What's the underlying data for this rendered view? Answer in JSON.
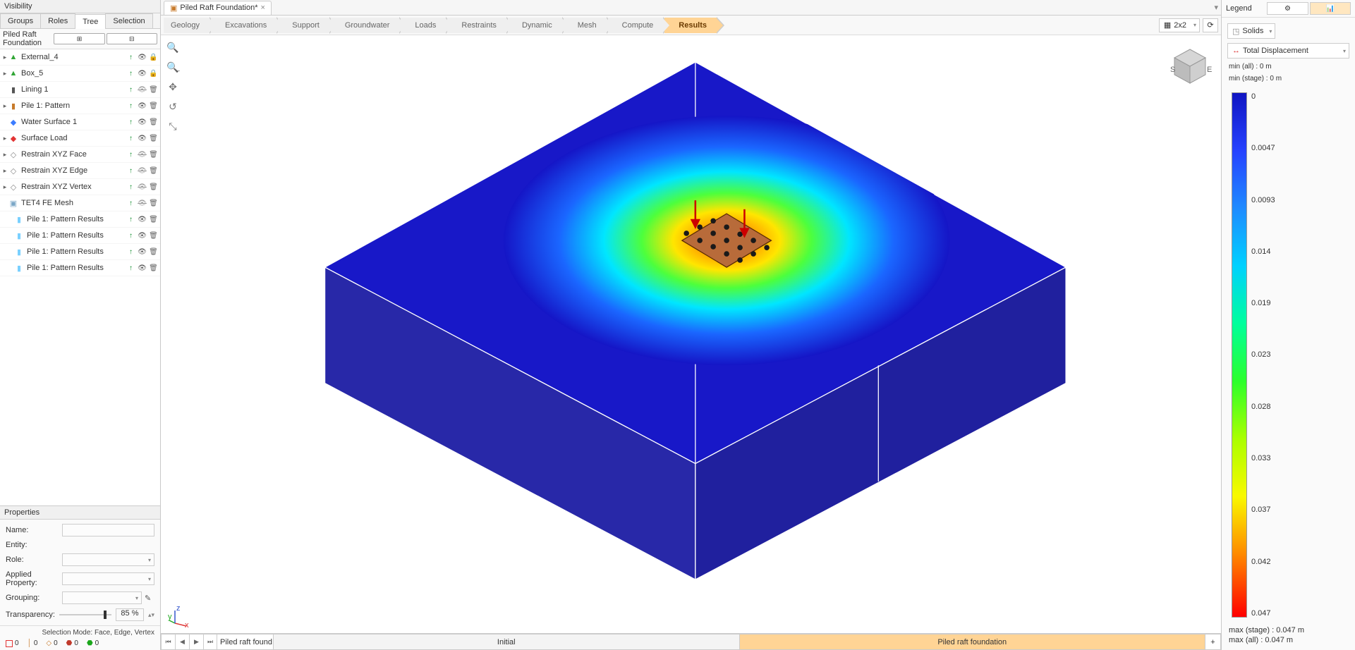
{
  "visibility": {
    "title": "Visibility",
    "tabs": [
      "Groups",
      "Roles",
      "Tree",
      "Selection"
    ],
    "active_tab": 2,
    "tree_title": "Piled Raft Foundation",
    "items": [
      {
        "expand": true,
        "icon_color": "#31a636",
        "icon": "▲",
        "label": "External_4",
        "arrow": true,
        "visible": true,
        "lock": true
      },
      {
        "expand": true,
        "icon_color": "#31a636",
        "icon": "▲",
        "label": "Box_5",
        "arrow": true,
        "visible": true,
        "lock": true
      },
      {
        "expand": false,
        "icon_color": "#555",
        "icon": "▮",
        "label": "Lining 1",
        "arrow": true,
        "visible": false,
        "lock": false
      },
      {
        "expand": true,
        "icon_color": "#c77a2b",
        "icon": "▮",
        "label": "Pile 1: Pattern",
        "arrow": true,
        "visible": true,
        "lock": false
      },
      {
        "expand": false,
        "icon_color": "#3b7cff",
        "icon": "◆",
        "label": "Water Surface 1",
        "arrow": true,
        "visible": true,
        "lock": false
      },
      {
        "expand": true,
        "icon_color": "#e23333",
        "icon": "◆",
        "label": "Surface Load",
        "arrow": true,
        "visible": true,
        "lock": false
      },
      {
        "expand": true,
        "icon_color": "#888",
        "icon": "◇",
        "label": "Restrain XYZ Face",
        "arrow": true,
        "visible": false,
        "lock": false
      },
      {
        "expand": true,
        "icon_color": "#888",
        "icon": "◇",
        "label": "Restrain XYZ Edge",
        "arrow": true,
        "visible": false,
        "lock": false
      },
      {
        "expand": true,
        "icon_color": "#888",
        "icon": "◇",
        "label": "Restrain XYZ Vertex",
        "arrow": true,
        "visible": false,
        "lock": false
      },
      {
        "expand": false,
        "icon_color": "#7aa7c7",
        "icon": "▣",
        "label": "TET4 FE Mesh",
        "arrow": true,
        "visible": false,
        "lock": false
      },
      {
        "expand": false,
        "icon_color": "#7ad0ff",
        "icon": "▮",
        "label": "Pile 1: Pattern  Results",
        "arrow": true,
        "visible": true,
        "lock": false,
        "indent": true
      },
      {
        "expand": false,
        "icon_color": "#7ad0ff",
        "icon": "▮",
        "label": "Pile 1: Pattern  Results",
        "arrow": true,
        "visible": true,
        "lock": false,
        "indent": true
      },
      {
        "expand": false,
        "icon_color": "#7ad0ff",
        "icon": "▮",
        "label": "Pile 1: Pattern  Results",
        "arrow": true,
        "visible": true,
        "lock": false,
        "indent": true
      },
      {
        "expand": false,
        "icon_color": "#7ad0ff",
        "icon": "▮",
        "label": "Pile 1: Pattern  Results",
        "arrow": true,
        "visible": true,
        "lock": false,
        "indent": true
      }
    ]
  },
  "properties": {
    "title": "Properties",
    "labels": {
      "name": "Name:",
      "entity": "Entity:",
      "role": "Role:",
      "applied": "Applied Property:",
      "grouping": "Grouping:",
      "transp": "Transparency:"
    },
    "transparency": "85 %",
    "slider_pos": 0.85
  },
  "status": {
    "sel_mode": "Selection Mode:  Face, Edge, Vertex",
    "counts": [
      {
        "color": "#e23333",
        "label": "0"
      },
      {
        "color": "#c77a2b",
        "label": "0",
        "icon": "│"
      },
      {
        "color": "#c77a2b",
        "label": "0",
        "icon": "◇"
      },
      {
        "color": "#c0392b",
        "label": "0",
        "icon": "⬣"
      },
      {
        "color": "#1aa61a",
        "label": "0",
        "icon": "⬣"
      }
    ]
  },
  "doc": {
    "tab_label": "Piled Raft Foundation*"
  },
  "crumbs": {
    "items": [
      "Geology",
      "Excavations",
      "Support",
      "Groundwater",
      "Loads",
      "Restraints",
      "Dynamic",
      "Mesh",
      "Compute",
      "Results"
    ],
    "active": 9,
    "grid_sel": "2x2"
  },
  "stages": {
    "field_value": "Piled raft found",
    "cells": [
      "Initial",
      "Piled raft foundation"
    ],
    "active": 1
  },
  "legend": {
    "title": "Legend",
    "type_btn": "Solids",
    "result_btn": "Total Displacement",
    "min_all": "min (all) :      0 m",
    "min_stage": "min (stage) :  0 m",
    "ticks": [
      "0",
      "0.0047",
      "0.0093",
      "0.014",
      "0.019",
      "0.023",
      "0.028",
      "0.033",
      "0.037",
      "0.042",
      "0.047"
    ],
    "max_stage": "max (stage) :  0.047 m",
    "max_all": "max (all) :       0.047 m"
  }
}
